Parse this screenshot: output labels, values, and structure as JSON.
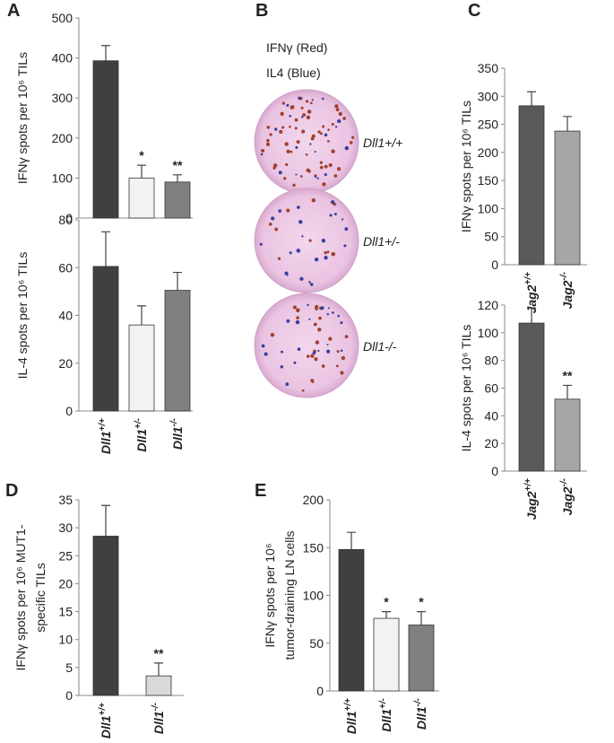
{
  "panel_labels": [
    "A",
    "B",
    "C",
    "D",
    "E"
  ],
  "panel_b": {
    "legend": [
      "IFNγ (Red)",
      "IL4 (Blue)"
    ],
    "wells": [
      "Dll1+/+",
      "Dll1+/-",
      "Dll1-/-"
    ]
  },
  "chart_data": [
    {
      "type": "bar",
      "ylabel": [
        "IFNγ spots per 10⁶ TILs"
      ],
      "values": [
        393,
        100,
        90
      ],
      "errors": [
        38,
        32,
        18
      ],
      "significance": [
        null,
        "*",
        "**"
      ],
      "colors": [
        "#404040",
        "#f2f2f2",
        "#808080"
      ],
      "ylim": [
        0,
        500
      ],
      "yticks": [
        0,
        100,
        200,
        300,
        400,
        500
      ]
    },
    {
      "type": "bar",
      "ylabel": [
        "IL-4 spots per 10⁶ TILs"
      ],
      "categories": [
        "Dll1+/+",
        "Dll1+/-",
        "Dll1-/-"
      ],
      "values": [
        60.5,
        36,
        50.5
      ],
      "errors": [
        14.5,
        8,
        7.5
      ],
      "colors": [
        "#404040",
        "#f2f2f2",
        "#808080"
      ],
      "ylim": [
        0,
        80
      ],
      "yticks": [
        0,
        20,
        40,
        60,
        80
      ]
    },
    {
      "type": "bar",
      "ylabel": [
        "IFNγ spots per 10⁶ MUT1-",
        "specific TILs"
      ],
      "categories": [
        "Dll1+/+",
        "Dll1-/-"
      ],
      "values": [
        28.5,
        3.5
      ],
      "errors": [
        5.5,
        2.3
      ],
      "significance": [
        null,
        "**"
      ],
      "colors": [
        "#404040",
        "#d9d9d9"
      ],
      "ylim": [
        0,
        35
      ],
      "yticks": [
        0,
        5,
        10,
        15,
        20,
        25,
        30,
        35
      ]
    },
    {
      "type": "bar",
      "ylabel": [
        "IFNγ spots per 10⁶",
        "tumor-draining LN cells"
      ],
      "categories": [
        "Dll1+/+",
        "Dll1+/-",
        "Dll1-/-"
      ],
      "values": [
        148,
        76,
        69
      ],
      "errors": [
        18,
        7,
        14
      ],
      "significance": [
        null,
        "*",
        "*"
      ],
      "colors": [
        "#404040",
        "#f2f2f2",
        "#808080"
      ],
      "ylim": [
        0,
        200
      ],
      "yticks": [
        0,
        50,
        100,
        150,
        200
      ]
    },
    {
      "type": "bar",
      "ylabel": [
        "IFNγ spots per 10⁶ TILs"
      ],
      "categories": [
        "Jag2+/+",
        "Jag2-/-"
      ],
      "values": [
        283,
        238
      ],
      "errors": [
        25,
        26
      ],
      "colors": [
        "#595959",
        "#a6a6a6"
      ],
      "ylim": [
        0,
        350
      ],
      "yticks": [
        0,
        50,
        100,
        150,
        200,
        250,
        300,
        350
      ]
    },
    {
      "type": "bar",
      "ylabel": [
        "IL-4 spots per 10⁶ TILs"
      ],
      "categories": [
        "Jag2+/+",
        "Jag2-/-"
      ],
      "values": [
        107,
        52
      ],
      "errors": [
        11,
        10
      ],
      "significance": [
        null,
        "**"
      ],
      "colors": [
        "#595959",
        "#a6a6a6"
      ],
      "ylim": [
        0,
        120
      ],
      "yticks": [
        0,
        20,
        40,
        60,
        80,
        100,
        120
      ]
    }
  ]
}
